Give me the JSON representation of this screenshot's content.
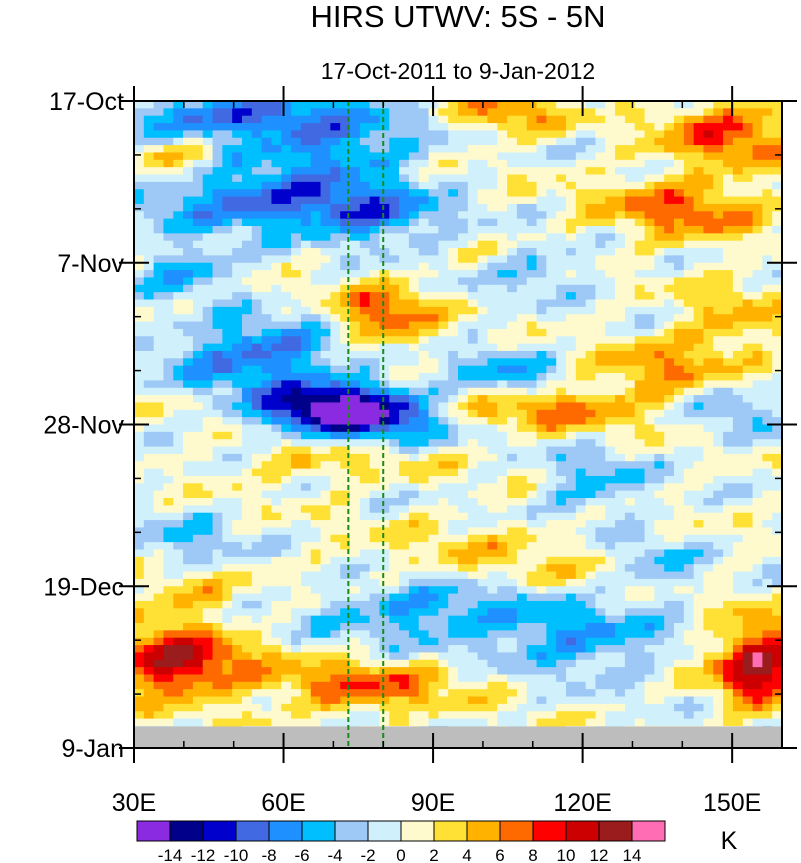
{
  "chart_data": {
    "type": "heatmap",
    "title": "HIRS UTWV: 5S - 5N",
    "subtitle": "17-Oct-2011 to 9-Jan-2012",
    "x_axis": {
      "range": [
        30,
        160
      ],
      "ticks": [
        30,
        60,
        90,
        120,
        150
      ],
      "tick_labels": [
        "30E",
        "60E",
        "90E",
        "120E",
        "150E"
      ],
      "minor_step": 10
    },
    "y_axis": {
      "range_days": [
        0,
        84
      ],
      "ticks": [
        0,
        21,
        42,
        63,
        84
      ],
      "tick_labels": [
        "17-Oct",
        "7-Nov",
        "28-Nov",
        "19-Dec",
        "9-Jan"
      ],
      "minor_step": 7,
      "orientation": "time increases downward"
    },
    "reference_lines": [
      {
        "lon": 73,
        "style": "dashed",
        "color": "#1a8a1a"
      },
      {
        "lon": 80,
        "style": "dashed",
        "color": "#1a8a1a"
      }
    ],
    "missing_band_days": [
      81.2,
      84
    ],
    "missing_color": "#bdbdbd",
    "colorbar": {
      "unit": "K",
      "boundaries": [
        -14,
        -12,
        -10,
        -8,
        -6,
        -4,
        -2,
        0,
        2,
        4,
        6,
        8,
        10,
        12,
        14
      ],
      "tick_labels": [
        "-14",
        "-12",
        "-10",
        "-8",
        "-6",
        "-4",
        "-2",
        "0",
        "2",
        "4",
        "6",
        "8",
        "10",
        "12",
        "14"
      ],
      "colors": [
        "#8a2be2",
        "#00008b",
        "#0000cd",
        "#4169e1",
        "#1e90ff",
        "#00bfff",
        "#9ec8f5",
        "#d0f0fb",
        "#fffacd",
        "#ffe135",
        "#ffb300",
        "#ff6a00",
        "#ff0000",
        "#cc0000",
        "#9b1c1c",
        "#ff6eb4"
      ]
    },
    "anomaly_features": [
      {
        "lon": 50,
        "day": 2,
        "value": -9,
        "sigma_lon": 16,
        "sigma_day": 2.0
      },
      {
        "lon": 70,
        "day": 6,
        "value": -7,
        "sigma_lon": 12,
        "sigma_day": 3.0
      },
      {
        "lon": 55,
        "day": 13,
        "value": -9,
        "sigma_lon": 16,
        "sigma_day": 2.5
      },
      {
        "lon": 78,
        "day": 15,
        "value": -7,
        "sigma_lon": 10,
        "sigma_day": 2.5
      },
      {
        "lon": 40,
        "day": 22,
        "value": -6,
        "sigma_lon": 8,
        "sigma_day": 2.0
      },
      {
        "lon": 55,
        "day": 33,
        "value": -9,
        "sigma_lon": 12,
        "sigma_day": 3.0
      },
      {
        "lon": 68,
        "day": 40,
        "value": -13,
        "sigma_lon": 10,
        "sigma_day": 2.2
      },
      {
        "lon": 80,
        "day": 41,
        "value": -8,
        "sigma_lon": 10,
        "sigma_day": 3.0
      },
      {
        "lon": 105,
        "day": 36,
        "value": -5,
        "sigma_lon": 8,
        "sigma_day": 3.0
      },
      {
        "lon": 90,
        "day": 66,
        "value": -7,
        "sigma_lon": 16,
        "sigma_day": 3.0
      },
      {
        "lon": 120,
        "day": 70,
        "value": -6,
        "sigma_lon": 12,
        "sigma_day": 3.0
      },
      {
        "lon": 122,
        "day": 50,
        "value": -5,
        "sigma_lon": 7,
        "sigma_day": 3.0
      },
      {
        "lon": 112,
        "day": 22,
        "value": -4,
        "sigma_lon": 7,
        "sigma_day": 2.0
      },
      {
        "lon": 135,
        "day": 60,
        "value": -4,
        "sigma_lon": 6,
        "sigma_day": 3.0
      },
      {
        "lon": 40,
        "day": 58,
        "value": -4,
        "sigma_lon": 8,
        "sigma_day": 3.0
      },
      {
        "lon": 150,
        "day": 40,
        "value": -4,
        "sigma_lon": 6,
        "sigma_day": 3.0
      },
      {
        "lon": 105,
        "day": 2,
        "value": 6,
        "sigma_lon": 8,
        "sigma_day": 2.0
      },
      {
        "lon": 150,
        "day": 4,
        "value": 8,
        "sigma_lon": 10,
        "sigma_day": 3.0
      },
      {
        "lon": 38,
        "day": 7,
        "value": 5,
        "sigma_lon": 5,
        "sigma_day": 1.5
      },
      {
        "lon": 140,
        "day": 14,
        "value": 7,
        "sigma_lon": 12,
        "sigma_day": 3.0
      },
      {
        "lon": 80,
        "day": 28,
        "value": 8,
        "sigma_lon": 7,
        "sigma_day": 3.0
      },
      {
        "lon": 110,
        "day": 40,
        "value": 7,
        "sigma_lon": 14,
        "sigma_day": 2.0
      },
      {
        "lon": 135,
        "day": 35,
        "value": 5,
        "sigma_lon": 10,
        "sigma_day": 3.0
      },
      {
        "lon": 150,
        "day": 29,
        "value": 4,
        "sigma_lon": 8,
        "sigma_day": 4.0
      },
      {
        "lon": 38,
        "day": 73,
        "value": 12,
        "sigma_lon": 10,
        "sigma_day": 3.0
      },
      {
        "lon": 75,
        "day": 76,
        "value": 7,
        "sigma_lon": 14,
        "sigma_day": 2.5
      },
      {
        "lon": 155,
        "day": 73,
        "value": 13,
        "sigma_lon": 6,
        "sigma_day": 4.0
      },
      {
        "lon": 70,
        "day": 47,
        "value": 4,
        "sigma_lon": 14,
        "sigma_day": 2.0
      },
      {
        "lon": 40,
        "day": 64,
        "value": 5,
        "sigma_lon": 8,
        "sigma_day": 2.5
      },
      {
        "lon": 100,
        "day": 60,
        "value": 3,
        "sigma_lon": 20,
        "sigma_day": 4.0
      }
    ]
  }
}
